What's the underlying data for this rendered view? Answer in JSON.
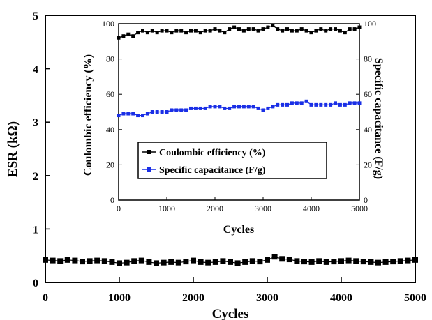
{
  "chart_data": [
    {
      "type": "scatter",
      "xlabel": "Cycles",
      "ylabel": "ESR (kΩ)",
      "xlim": [
        0,
        5000
      ],
      "ylim": [
        0,
        5
      ],
      "xticks": [
        "0",
        "1000",
        "2000",
        "3000",
        "4000",
        "5000"
      ],
      "yticks": [
        "0",
        "1",
        "2",
        "3",
        "4",
        "5"
      ],
      "series": [
        {
          "color": "#000000",
          "marker": "square",
          "x": [
            0,
            100,
            200,
            300,
            400,
            500,
            600,
            700,
            800,
            900,
            1000,
            1100,
            1200,
            1300,
            1400,
            1500,
            1600,
            1700,
            1800,
            1900,
            2000,
            2100,
            2200,
            2300,
            2400,
            2500,
            2600,
            2700,
            2800,
            2900,
            3000,
            3100,
            3200,
            3300,
            3400,
            3500,
            3600,
            3700,
            3800,
            3900,
            4000,
            4100,
            4200,
            4300,
            4400,
            4500,
            4600,
            4700,
            4800,
            4900,
            5000
          ],
          "y": [
            0.42,
            0.41,
            0.4,
            0.42,
            0.41,
            0.39,
            0.4,
            0.41,
            0.4,
            0.38,
            0.36,
            0.37,
            0.4,
            0.41,
            0.38,
            0.36,
            0.37,
            0.38,
            0.37,
            0.39,
            0.41,
            0.38,
            0.37,
            0.38,
            0.4,
            0.38,
            0.36,
            0.38,
            0.4,
            0.39,
            0.42,
            0.48,
            0.44,
            0.43,
            0.4,
            0.39,
            0.38,
            0.4,
            0.38,
            0.39,
            0.4,
            0.41,
            0.4,
            0.39,
            0.38,
            0.37,
            0.38,
            0.39,
            0.4,
            0.41,
            0.42
          ]
        }
      ]
    },
    {
      "type": "scatter",
      "xlabel": "Cycles",
      "ylabel": "Coulombic efficiency (%)",
      "y2label": "Specific capacitance (F/g)",
      "xlim": [
        0,
        5000
      ],
      "ylim": [
        0,
        100
      ],
      "y2lim": [
        0,
        100
      ],
      "xticks": [
        "0",
        "1000",
        "2000",
        "3000",
        "4000",
        "5000"
      ],
      "yticks": [
        "0",
        "20",
        "40",
        "60",
        "80",
        "100"
      ],
      "y2ticks": [
        "0",
        "20",
        "40",
        "60",
        "80",
        "100"
      ],
      "legend_position": "center",
      "series": [
        {
          "name": "Coulombic efficiency (%)",
          "color": "#000000",
          "marker": "square",
          "axis": "left",
          "x": [
            0,
            100,
            200,
            300,
            400,
            500,
            600,
            700,
            800,
            900,
            1000,
            1100,
            1200,
            1300,
            1400,
            1500,
            1600,
            1700,
            1800,
            1900,
            2000,
            2100,
            2200,
            2300,
            2400,
            2500,
            2600,
            2700,
            2800,
            2900,
            3000,
            3100,
            3200,
            3300,
            3400,
            3500,
            3600,
            3700,
            3800,
            3900,
            4000,
            4100,
            4200,
            4300,
            4400,
            4500,
            4600,
            4700,
            4800,
            4900,
            5000
          ],
          "y": [
            92,
            93,
            94,
            93,
            95,
            96,
            95,
            96,
            95,
            96,
            96,
            95,
            96,
            96,
            95,
            96,
            96,
            95,
            96,
            96,
            97,
            96,
            95,
            97,
            98,
            97,
            96,
            97,
            97,
            96,
            97,
            98,
            99,
            97,
            96,
            97,
            96,
            96,
            97,
            96,
            95,
            96,
            97,
            96,
            97,
            97,
            96,
            95,
            97,
            97,
            98
          ]
        },
        {
          "name": "Specific capacitance (F/g)",
          "color": "#1a2fe6",
          "marker": "square",
          "axis": "right",
          "x": [
            0,
            100,
            200,
            300,
            400,
            500,
            600,
            700,
            800,
            900,
            1000,
            1100,
            1200,
            1300,
            1400,
            1500,
            1600,
            1700,
            1800,
            1900,
            2000,
            2100,
            2200,
            2300,
            2400,
            2500,
            2600,
            2700,
            2800,
            2900,
            3000,
            3100,
            3200,
            3300,
            3400,
            3500,
            3600,
            3700,
            3800,
            3900,
            4000,
            4100,
            4200,
            4300,
            4400,
            4500,
            4600,
            4700,
            4800,
            4900,
            5000
          ],
          "y": [
            48,
            49,
            49,
            49,
            48,
            48,
            49,
            50,
            50,
            50,
            50,
            51,
            51,
            51,
            51,
            52,
            52,
            52,
            52,
            53,
            53,
            53,
            52,
            52,
            53,
            53,
            53,
            53,
            53,
            52,
            51,
            52,
            53,
            54,
            54,
            54,
            55,
            55,
            55,
            56,
            54,
            54,
            54,
            54,
            54,
            55,
            54,
            54,
            55,
            55,
            55
          ]
        }
      ]
    }
  ]
}
